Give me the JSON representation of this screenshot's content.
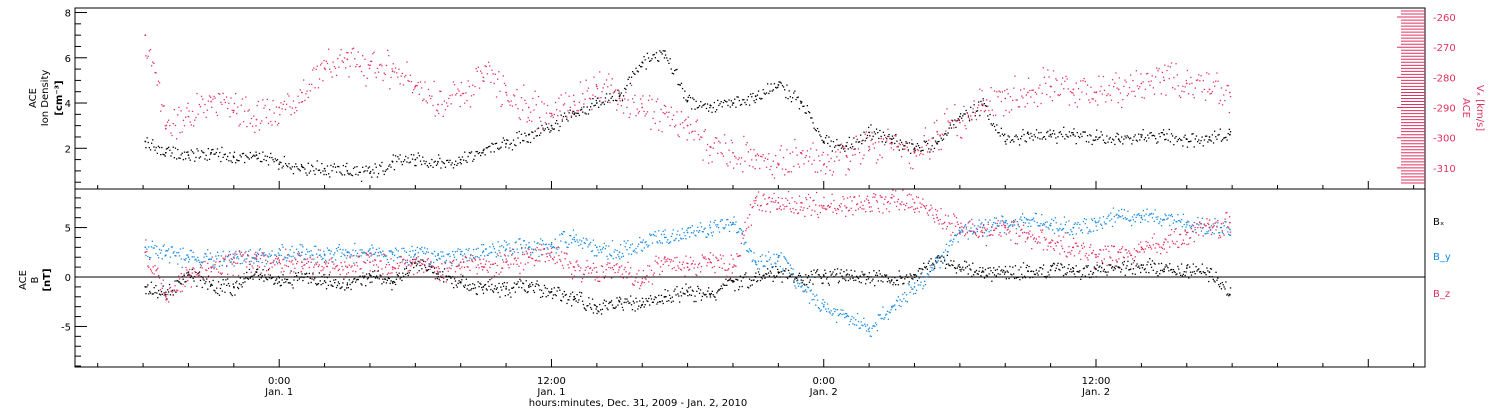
{
  "chart_data": [
    {
      "type": "scatter",
      "panel": "density-velocity",
      "ylabel_left": [
        "ACE",
        "Ion Density",
        "[cm⁻³]"
      ],
      "ylabel_right": [
        "ACE",
        "Vₓ [km/s]"
      ],
      "ylim_left": [
        0.2,
        8.2
      ],
      "ylim_right": [
        -317,
        -257
      ],
      "yticks_left": [
        2,
        4,
        6,
        8
      ],
      "yticks_right": [
        -260,
        -270,
        -280,
        -290,
        -300,
        -310
      ],
      "series": [
        {
          "name": "",
          "color": "#000000",
          "axis": "left",
          "x": [
            -5.9,
            -5.0,
            -4.0,
            -3.0,
            -2.0,
            -1.0,
            0.0,
            1.0,
            2.0,
            3.0,
            4.0,
            5.0,
            6.0,
            7.0,
            8.0,
            9.0,
            10.0,
            11.0,
            12.0,
            13.0,
            14.0,
            15.0,
            16.0,
            17.0,
            18.0,
            19.0,
            20.0,
            21.0,
            22.0,
            23.0,
            24.0,
            25.0,
            26.0,
            27.0,
            28.0,
            29.0,
            30.0,
            31.0,
            32.0,
            33.0,
            34.0,
            35.0,
            36.0,
            37.0,
            38.0,
            39.0,
            40.0,
            41.0,
            41.9
          ],
          "values": [
            2.3,
            1.8,
            1.7,
            1.8,
            1.6,
            1.7,
            1.3,
            1.2,
            1.1,
            1.0,
            0.9,
            1.4,
            1.5,
            1.4,
            1.5,
            1.9,
            2.2,
            2.6,
            3.0,
            3.5,
            4.0,
            4.3,
            5.8,
            6.3,
            4.1,
            3.9,
            4.0,
            4.3,
            4.8,
            4.0,
            2.3,
            2.1,
            2.7,
            2.4,
            2.0,
            2.2,
            3.4,
            3.9,
            2.3,
            2.7,
            2.6,
            2.6,
            2.5,
            2.4,
            2.5,
            2.6,
            2.4,
            2.5,
            2.6
          ]
        },
        {
          "name": "",
          "color": "#e0325f",
          "axis": "right",
          "x": [
            -5.9,
            -5.0,
            -4.0,
            -3.0,
            -2.0,
            -1.0,
            0.0,
            1.0,
            2.0,
            3.0,
            4.0,
            5.0,
            6.0,
            7.0,
            8.0,
            9.0,
            10.0,
            11.0,
            12.0,
            13.0,
            14.0,
            15.0,
            16.0,
            17.0,
            18.0,
            19.0,
            20.0,
            21.0,
            22.0,
            23.0,
            24.0,
            25.0,
            26.0,
            27.0,
            28.0,
            29.0,
            30.0,
            31.0,
            32.0,
            33.0,
            34.0,
            35.0,
            36.0,
            37.0,
            38.0,
            39.0,
            40.0,
            41.0,
            41.9
          ],
          "values": [
            -266,
            -297,
            -293,
            -288,
            -291,
            -294,
            -290,
            -285,
            -277,
            -274,
            -276,
            -278,
            -283,
            -289,
            -286,
            -280,
            -285,
            -290,
            -292,
            -288,
            -283,
            -287,
            -290,
            -292,
            -296,
            -303,
            -305,
            -306,
            -309,
            -305,
            -309,
            -306,
            -303,
            -302,
            -305,
            -298,
            -295,
            -289,
            -287,
            -285,
            -283,
            -284,
            -285,
            -284,
            -282,
            -281,
            -282,
            -284,
            -285
          ]
        }
      ]
    },
    {
      "type": "scatter",
      "panel": "magnetic-field",
      "ylabel": [
        "ACE",
        "B",
        "[nT]"
      ],
      "ylim": [
        -9.1,
        8.9
      ],
      "yticks": [
        5,
        0,
        -5
      ],
      "zero_line": true,
      "legend": [
        "Bₓ",
        "B_y",
        "B_z"
      ],
      "series": [
        {
          "name": "Bₓ",
          "color": "#000000",
          "x": [
            -5.9,
            -5.0,
            -4.0,
            -3.0,
            -2.0,
            -1.0,
            0.0,
            1.0,
            2.0,
            3.0,
            4.0,
            5.0,
            6.0,
            7.0,
            8.0,
            9.0,
            10.0,
            11.0,
            12.0,
            13.0,
            14.0,
            15.0,
            16.0,
            17.0,
            18.0,
            19.0,
            20.0,
            21.0,
            22.0,
            23.0,
            24.0,
            25.0,
            26.0,
            27.0,
            28.0,
            29.0,
            30.0,
            31.0,
            32.0,
            33.0,
            34.0,
            35.0,
            36.0,
            37.0,
            38.0,
            39.0,
            40.0,
            41.0,
            41.9
          ],
          "values": [
            -1.0,
            -1.8,
            0.5,
            -0.8,
            -1.0,
            0.5,
            -0.5,
            0.0,
            -0.4,
            -0.8,
            0.2,
            -0.5,
            1.5,
            0.3,
            -0.5,
            -1.0,
            -1.2,
            -0.9,
            -1.5,
            -2.0,
            -3.0,
            -2.5,
            -2.8,
            -2.0,
            -1.5,
            -1.8,
            -0.5,
            0.0,
            0.5,
            0.0,
            0.2,
            0.2,
            0.0,
            -0.3,
            0.2,
            2.0,
            1.0,
            0.6,
            0.5,
            0.6,
            0.7,
            0.6,
            0.8,
            1.0,
            1.2,
            0.8,
            0.9,
            0.5,
            -1.8
          ]
        },
        {
          "name": "B_y",
          "color": "#1a8be0",
          "x": [
            -5.9,
            -5.0,
            -4.0,
            -3.0,
            -2.0,
            -1.0,
            0.0,
            1.0,
            2.0,
            3.0,
            4.0,
            5.0,
            6.0,
            7.0,
            8.0,
            9.0,
            10.0,
            11.0,
            12.0,
            13.0,
            14.0,
            15.0,
            16.0,
            17.0,
            18.0,
            19.0,
            20.0,
            21.0,
            22.0,
            23.0,
            24.0,
            25.0,
            26.0,
            27.0,
            28.0,
            29.0,
            30.0,
            31.0,
            32.0,
            33.0,
            34.0,
            35.0,
            36.0,
            37.0,
            38.0,
            39.0,
            40.0,
            41.0,
            41.9
          ],
          "values": [
            3.0,
            2.2,
            2.0,
            1.8,
            2.0,
            2.2,
            2.2,
            2.5,
            2.3,
            2.5,
            2.4,
            2.3,
            2.3,
            2.2,
            2.3,
            2.6,
            2.8,
            3.0,
            3.3,
            4.0,
            3.0,
            2.5,
            3.5,
            4.0,
            4.5,
            5.0,
            5.5,
            1.5,
            2.0,
            -1.0,
            -3.0,
            -4.0,
            -5.5,
            -3.0,
            -1.0,
            1.5,
            4.5,
            5.0,
            5.5,
            5.8,
            5.2,
            5.0,
            5.5,
            6.2,
            6.0,
            5.8,
            5.5,
            5.0,
            4.8
          ]
        },
        {
          "name": "B_z",
          "color": "#e0325f",
          "x": [
            -5.9,
            -5.0,
            -4.0,
            -3.0,
            -2.0,
            -1.0,
            0.0,
            1.0,
            2.0,
            3.0,
            4.0,
            5.0,
            6.0,
            7.0,
            8.0,
            9.0,
            10.0,
            11.0,
            12.0,
            13.0,
            14.0,
            15.0,
            16.0,
            17.0,
            18.0,
            19.0,
            20.0,
            21.0,
            22.0,
            23.0,
            24.0,
            25.0,
            26.0,
            27.0,
            28.0,
            29.0,
            30.0,
            31.0,
            32.0,
            33.0,
            34.0,
            35.0,
            36.0,
            37.0,
            38.0,
            39.0,
            40.0,
            41.0,
            41.9
          ],
          "values": [
            2.5,
            -2.0,
            0.0,
            1.0,
            1.5,
            1.8,
            1.5,
            1.5,
            1.5,
            1.0,
            1.5,
            1.0,
            1.5,
            0.5,
            1.5,
            1.0,
            1.5,
            2.0,
            2.5,
            1.0,
            0.5,
            1.0,
            -0.5,
            2.0,
            1.0,
            1.5,
            1.0,
            8.0,
            7.5,
            7.5,
            7.2,
            7.0,
            7.5,
            8.0,
            7.5,
            6.0,
            5.0,
            4.5,
            5.0,
            4.0,
            3.5,
            3.0,
            2.0,
            2.5,
            3.0,
            3.5,
            4.5,
            5.0,
            5.5
          ]
        }
      ]
    }
  ],
  "x_axis": {
    "xlim": [
      -9.0,
      50.5
    ],
    "major_ticks": [
      {
        "x": 0,
        "line1": "0:00",
        "line2": "Jan. 1"
      },
      {
        "x": 12,
        "line1": "12:00",
        "line2": "Jan. 1"
      },
      {
        "x": 24,
        "line1": "0:00",
        "line2": "Jan. 2"
      },
      {
        "x": 36,
        "line1": "12:00",
        "line2": "Jan. 2"
      }
    ],
    "xlabel": "hours:minutes, Dec. 31, 2009 - Jan. 2, 2010"
  }
}
